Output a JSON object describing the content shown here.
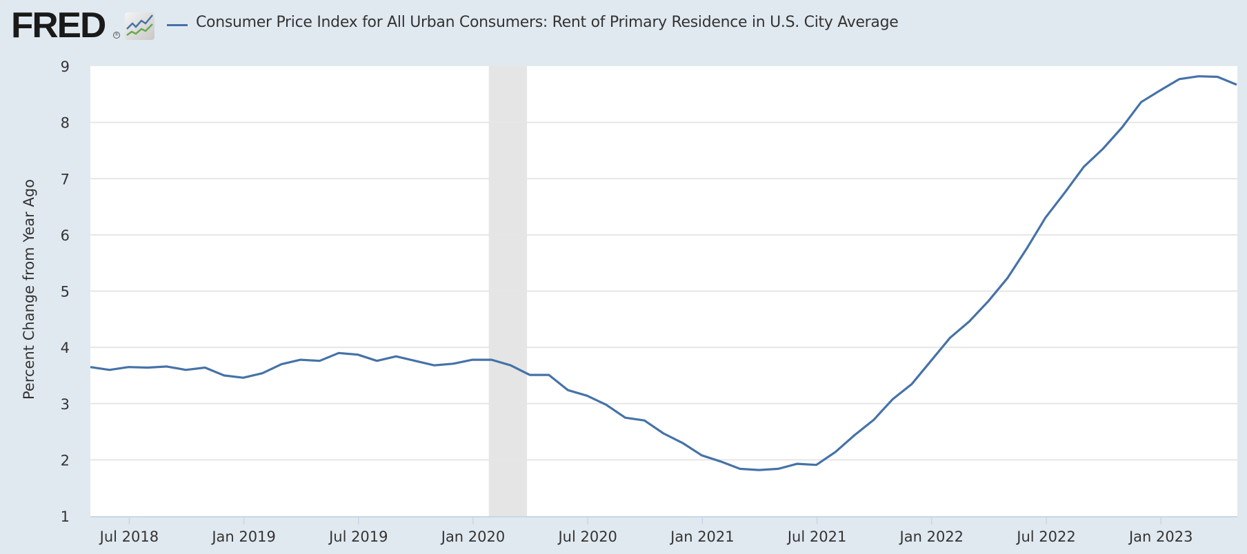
{
  "header": {
    "logo_text": "FRED",
    "logo_registered": "®",
    "series_title": "Consumer Price Index for All Urban Consumers: Rent of Primary Residence in U.S. City Average"
  },
  "colors": {
    "series": "#4572a7",
    "background": "#e1e9f0",
    "plot_background": "#ffffff",
    "gridline": "#e6e6e6",
    "recession_band": "#e5e5e5",
    "axis_line": "#c9d6e6",
    "text": "#333333",
    "logo_green": "#6aa84f"
  },
  "chart_data": {
    "type": "line",
    "title": "Consumer Price Index for All Urban Consumers: Rent of Primary Residence in U.S. City Average",
    "xlabel": "",
    "ylabel": "Percent Change from Year Ago",
    "ylim": [
      1,
      9
    ],
    "yticks": [
      1,
      2,
      3,
      4,
      5,
      6,
      7,
      8,
      9
    ],
    "x_start": "2018-05",
    "x_end": "2023-05",
    "x_ticks": [
      {
        "label": "Jul 2018",
        "month_index": 2
      },
      {
        "label": "Jan 2019",
        "month_index": 8
      },
      {
        "label": "Jul 2019",
        "month_index": 14
      },
      {
        "label": "Jan 2020",
        "month_index": 20
      },
      {
        "label": "Jul 2020",
        "month_index": 26
      },
      {
        "label": "Jan 2021",
        "month_index": 32
      },
      {
        "label": "Jul 2021",
        "month_index": 38
      },
      {
        "label": "Jan 2022",
        "month_index": 44
      },
      {
        "label": "Jul 2022",
        "month_index": 50
      },
      {
        "label": "Jan 2023",
        "month_index": 56
      }
    ],
    "grid": true,
    "legend": "top-left",
    "recessions": [
      {
        "start": "2020-02",
        "end": "2020-04",
        "start_index": 21,
        "end_index": 23
      }
    ],
    "x": [
      "2018-05",
      "2018-06",
      "2018-07",
      "2018-08",
      "2018-09",
      "2018-10",
      "2018-11",
      "2018-12",
      "2019-01",
      "2019-02",
      "2019-03",
      "2019-04",
      "2019-05",
      "2019-06",
      "2019-07",
      "2019-08",
      "2019-09",
      "2019-10",
      "2019-11",
      "2019-12",
      "2020-01",
      "2020-02",
      "2020-03",
      "2020-04",
      "2020-05",
      "2020-06",
      "2020-07",
      "2020-08",
      "2020-09",
      "2020-10",
      "2020-11",
      "2020-12",
      "2021-01",
      "2021-02",
      "2021-03",
      "2021-04",
      "2021-05",
      "2021-06",
      "2021-07",
      "2021-08",
      "2021-09",
      "2021-10",
      "2021-11",
      "2021-12",
      "2022-01",
      "2022-02",
      "2022-03",
      "2022-04",
      "2022-05",
      "2022-06",
      "2022-07",
      "2022-08",
      "2022-09",
      "2022-10",
      "2022-11",
      "2022-12",
      "2023-01",
      "2023-02",
      "2023-03",
      "2023-04",
      "2023-05"
    ],
    "series": [
      {
        "name": "Consumer Price Index for All Urban Consumers: Rent of Primary Residence in U.S. City Average",
        "values": [
          3.65,
          3.6,
          3.65,
          3.64,
          3.66,
          3.6,
          3.64,
          3.5,
          3.46,
          3.54,
          3.7,
          3.78,
          3.76,
          3.9,
          3.87,
          3.76,
          3.84,
          3.76,
          3.68,
          3.71,
          3.78,
          3.78,
          3.68,
          3.51,
          3.51,
          3.24,
          3.14,
          2.98,
          2.75,
          2.7,
          2.47,
          2.3,
          2.08,
          1.97,
          1.84,
          1.82,
          1.84,
          1.93,
          1.91,
          2.14,
          2.44,
          2.71,
          3.08,
          3.35,
          3.76,
          4.17,
          4.46,
          4.82,
          5.23,
          5.75,
          6.31,
          6.75,
          7.21,
          7.53,
          7.91,
          8.36,
          8.57,
          8.77,
          8.82,
          8.81,
          8.67
        ]
      }
    ]
  }
}
